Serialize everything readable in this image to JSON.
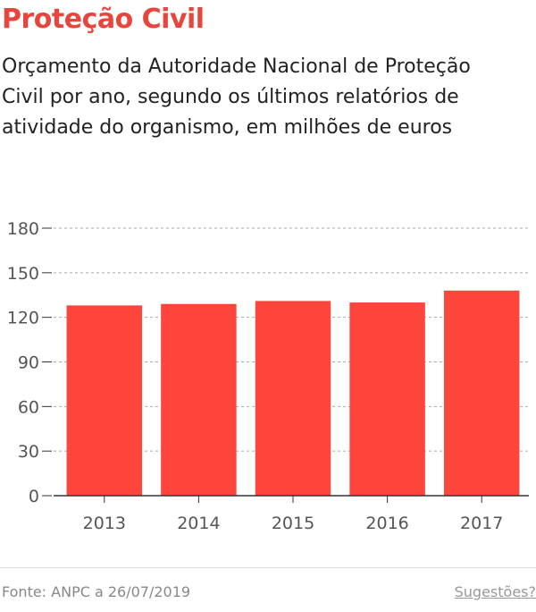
{
  "header": {
    "title": "Proteção Civil",
    "subtitle": "Orçamento da Autoridade Nacional de Proteção Civil por ano, segundo os últimos relatórios de atividade do organismo, em milhões de euros"
  },
  "footer": {
    "source": "Fonte: ANPC a 26/07/2019",
    "suggestions_link": "Sugestões?"
  },
  "colors": {
    "accent": "#e8453c",
    "bar": "#fd453c",
    "grid": "#aaaaaa",
    "axis": "#333333",
    "tick_text": "#555555"
  },
  "chart_data": {
    "type": "bar",
    "categories": [
      "2013",
      "2014",
      "2015",
      "2016",
      "2017"
    ],
    "values": [
      128,
      129,
      131,
      130,
      138
    ],
    "title": "",
    "xlabel": "",
    "ylabel": "",
    "ylim": [
      0,
      180
    ],
    "yticks": [
      0,
      30,
      60,
      90,
      120,
      150,
      180
    ],
    "grid": true,
    "legend": "none"
  }
}
